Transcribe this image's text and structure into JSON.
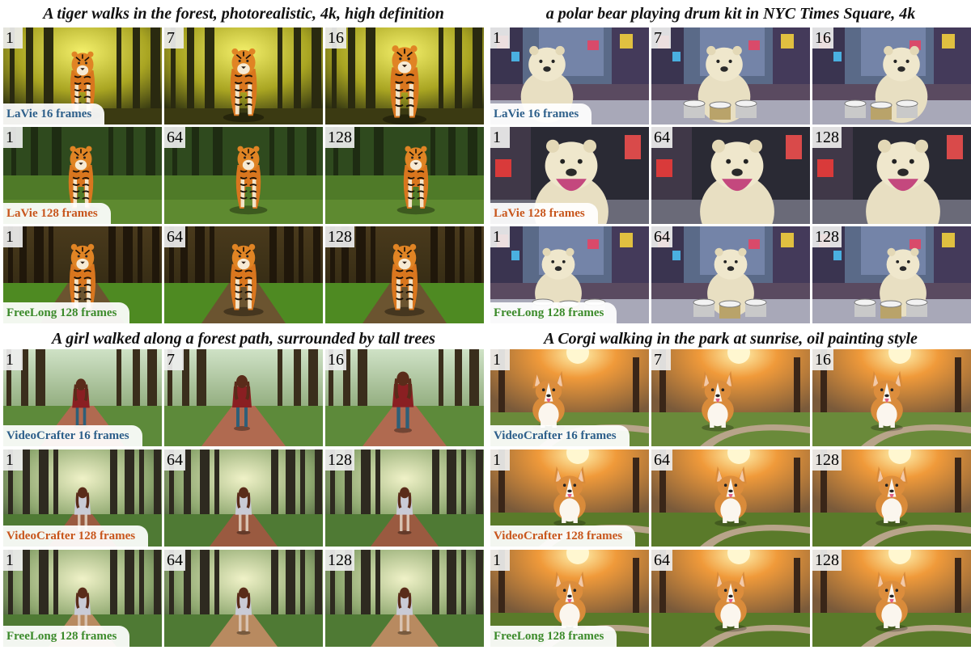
{
  "panels": [
    {
      "prompt": "A tiger walks in the forest, photorealistic, 4k, high definition",
      "scene": "tiger",
      "rows": [
        {
          "method": "LaVie 16 frames",
          "label_color": "#2d5f8a",
          "frames": [
            "1",
            "7",
            "16"
          ]
        },
        {
          "method": "LaVie 128 frames",
          "label_color": "#c8561c",
          "frames": [
            "1",
            "64",
            "128"
          ]
        },
        {
          "method": "FreeLong 128 frames",
          "label_color": "#3b8a2a",
          "frames": [
            "1",
            "64",
            "128"
          ]
        }
      ]
    },
    {
      "prompt": "a polar bear playing drum kit in NYC Times Square, 4k",
      "scene": "bear",
      "rows": [
        {
          "method": "LaVie 16 frames",
          "label_color": "#2d5f8a",
          "frames": [
            "1",
            "7",
            "16"
          ]
        },
        {
          "method": "LaVie 128 frames",
          "label_color": "#c8561c",
          "frames": [
            "1",
            "64",
            "128"
          ]
        },
        {
          "method": "FreeLong 128 frames",
          "label_color": "#3b8a2a",
          "frames": [
            "1",
            "64",
            "128"
          ]
        }
      ]
    },
    {
      "prompt": "A girl walked along a forest path, surrounded by tall trees",
      "scene": "girl",
      "rows": [
        {
          "method": "VideoCrafter 16 frames",
          "label_color": "#2d5f8a",
          "frames": [
            "1",
            "7",
            "16"
          ]
        },
        {
          "method": "VideoCrafter 128 frames",
          "label_color": "#c8561c",
          "frames": [
            "1",
            "64",
            "128"
          ]
        },
        {
          "method": "FreeLong 128 frames",
          "label_color": "#3b8a2a",
          "frames": [
            "1",
            "64",
            "128"
          ]
        }
      ]
    },
    {
      "prompt": "A Corgi walking in the park at sunrise, oil painting style",
      "scene": "corgi",
      "rows": [
        {
          "method": "VideoCrafter 16 frames",
          "label_color": "#2d5f8a",
          "frames": [
            "1",
            "7",
            "16"
          ]
        },
        {
          "method": "VideoCrafter 128 frames",
          "label_color": "#c8561c",
          "frames": [
            "1",
            "64",
            "128"
          ]
        },
        {
          "method": "FreeLong 128 frames",
          "label_color": "#3b8a2a",
          "frames": [
            "1",
            "64",
            "128"
          ]
        }
      ]
    }
  ]
}
